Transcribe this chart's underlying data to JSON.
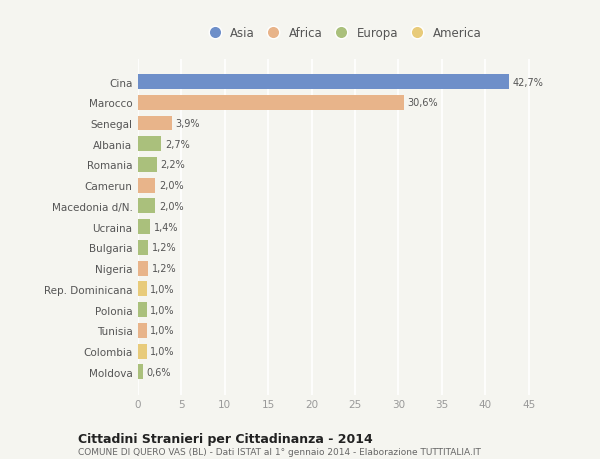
{
  "countries": [
    "Cina",
    "Marocco",
    "Senegal",
    "Albania",
    "Romania",
    "Camerun",
    "Macedonia d/N.",
    "Ucraina",
    "Bulgaria",
    "Nigeria",
    "Rep. Dominicana",
    "Polonia",
    "Tunisia",
    "Colombia",
    "Moldova"
  ],
  "values": [
    42.7,
    30.6,
    3.9,
    2.7,
    2.2,
    2.0,
    2.0,
    1.4,
    1.2,
    1.2,
    1.0,
    1.0,
    1.0,
    1.0,
    0.6
  ],
  "labels": [
    "42,7%",
    "30,6%",
    "3,9%",
    "2,7%",
    "2,2%",
    "2,0%",
    "2,0%",
    "1,4%",
    "1,2%",
    "1,2%",
    "1,0%",
    "1,0%",
    "1,0%",
    "1,0%",
    "0,6%"
  ],
  "continent": [
    "Asia",
    "Africa",
    "Africa",
    "Europa",
    "Europa",
    "Africa",
    "Europa",
    "Europa",
    "Europa",
    "Africa",
    "America",
    "Europa",
    "Africa",
    "America",
    "Europa"
  ],
  "colors": {
    "Asia": "#6e8fc9",
    "Africa": "#e8b48a",
    "Europa": "#aac07c",
    "America": "#e8cb7a"
  },
  "xlim": [
    0,
    47
  ],
  "xticks": [
    0,
    5,
    10,
    15,
    20,
    25,
    30,
    35,
    40,
    45
  ],
  "title": "Cittadini Stranieri per Cittadinanza - 2014",
  "subtitle": "COMUNE DI QUERO VAS (BL) - Dati ISTAT al 1° gennaio 2014 - Elaborazione TUTTITALIA.IT",
  "background_color": "#f5f5f0",
  "grid_color": "#ffffff",
  "bar_height": 0.72,
  "legend_entries": [
    "Asia",
    "Africa",
    "Europa",
    "America"
  ]
}
